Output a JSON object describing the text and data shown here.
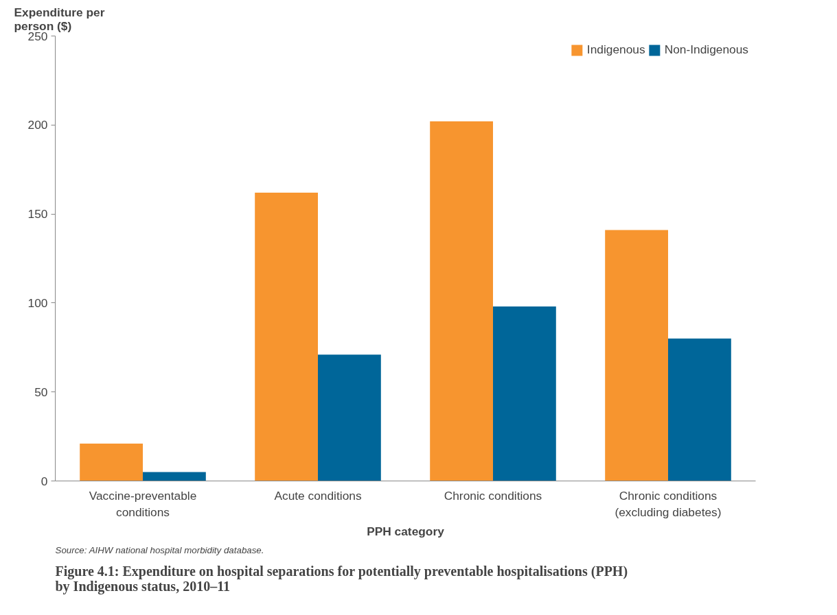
{
  "chart_data": {
    "type": "bar",
    "title": "Figure 4.1: Expenditure on hospital separations for potentially preventable hospitalisations (PPH)\nby Indigenous status, 2010–11",
    "ylabel": "Expenditure per\nperson ($)",
    "xlabel": "PPH category",
    "annotations": [
      "Source: AIHW national hospital morbidity database."
    ],
    "categories": [
      "Vaccine-preventable\nconditions",
      "Acute conditions",
      "Chronic conditions",
      "Chronic conditions\n(excluding diabetes)"
    ],
    "series": [
      {
        "name": "Indigenous",
        "color": "#f7952f",
        "values": [
          21,
          162,
          202,
          141
        ]
      },
      {
        "name": "Non-Indigenous",
        "color": "#006699",
        "values": [
          5,
          71,
          98,
          80
        ]
      }
    ],
    "ylim": [
      0,
      250
    ],
    "yticks": [
      0,
      50,
      100,
      150,
      200,
      250
    ],
    "grid": false,
    "legend": "top right"
  }
}
